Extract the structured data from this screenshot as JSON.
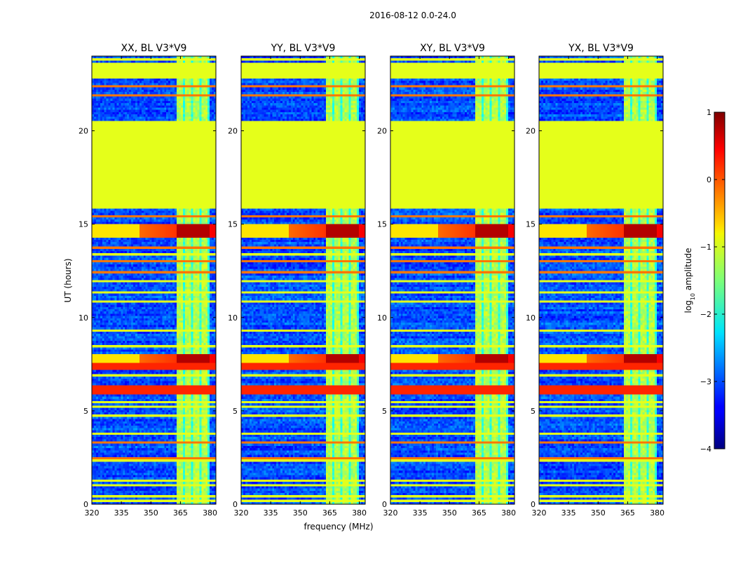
{
  "figure": {
    "suptitle": "2016-08-12 0.0-24.0",
    "xlabel": "frequency (MHz)",
    "ylabel": "UT (hours)"
  },
  "chart_data": {
    "type": "heatmap",
    "title": "2016-08-12 0.0-24.0",
    "xlabel": "frequency (MHz)",
    "ylabel": "UT (hours)",
    "xlim": [
      320,
      383
    ],
    "ylim": [
      0,
      24
    ],
    "xticks": [
      320,
      335,
      350,
      365,
      380
    ],
    "yticks": [
      0,
      5,
      10,
      15,
      20
    ],
    "panels": [
      {
        "title": "XX, BL V3*V9"
      },
      {
        "title": "YY, BL V3*V9"
      },
      {
        "title": "XY, BL V3*V9"
      },
      {
        "title": "YX, BL V3*V9"
      }
    ],
    "colorbar": {
      "label": "log10 amplitude",
      "label_base": "log",
      "label_sub": "10",
      "label_rest": " amplitude",
      "range": [
        -4,
        1
      ],
      "ticks": [
        1,
        0,
        -1,
        -2,
        -3,
        -4
      ],
      "colormap": "jet"
    },
    "flagged_intervals_hours": [
      [
        15.8,
        20.5
      ],
      [
        22.8,
        23.7
      ]
    ],
    "rfi_band_mhz": [
      363.5,
      380
    ]
  }
}
